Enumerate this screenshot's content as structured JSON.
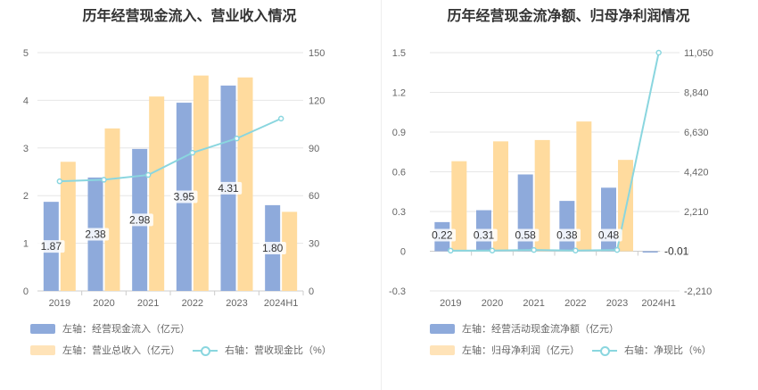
{
  "charts": [
    {
      "title": "历年经营现金流入、营业收入情况",
      "legend": {
        "bar1": "左轴：经营现金流入（亿元）",
        "bar2": "左轴：营业总收入（亿元）",
        "line": "右轴：营收现金比（%）"
      }
    },
    {
      "title": "历年经营现金流净额、归母净利润情况",
      "legend": {
        "bar1": "左轴：经营活动现金流净额（亿元）",
        "bar2": "左轴：归母净利润（亿元）",
        "line": "右轴：净现比（%）"
      }
    }
  ],
  "colors": {
    "bar1": "#8eaadb",
    "bar2": "#ffdb9e",
    "line": "#8ad6df",
    "grid": "#e6e6e6",
    "axis_text": "#666666"
  },
  "chart_data": [
    {
      "type": "bar",
      "title": "历年经营现金流入、营业收入情况",
      "categories": [
        "2019",
        "2020",
        "2021",
        "2022",
        "2023",
        "2024H1"
      ],
      "series": [
        {
          "name": "左轴：经营现金流入（亿元）",
          "axis": "left",
          "values": [
            1.87,
            2.38,
            2.98,
            3.95,
            4.31,
            1.8
          ],
          "labels": [
            "1.87",
            "2.38",
            "2.98",
            "3.95",
            "4.31",
            "1.80"
          ]
        },
        {
          "name": "左轴：营业总收入（亿元）",
          "axis": "left",
          "values": [
            2.71,
            3.41,
            4.08,
            4.52,
            4.48,
            1.66
          ]
        },
        {
          "name": "右轴：营收现金比（%）",
          "axis": "right",
          "type": "line",
          "values": [
            69,
            70,
            73,
            87,
            96,
            108.5
          ]
        }
      ],
      "y_left": {
        "min": 0,
        "max": 5,
        "ticks": [
          "0",
          "1",
          "2",
          "3",
          "4",
          "5"
        ]
      },
      "y_right": {
        "min": 0,
        "max": 150,
        "ticks": [
          "0",
          "30",
          "60",
          "90",
          "120",
          "150"
        ]
      },
      "grid": true,
      "legend_position": "bottom"
    },
    {
      "type": "bar",
      "title": "历年经营现金流净额、归母净利润情况",
      "categories": [
        "2019",
        "2020",
        "2021",
        "2022",
        "2023",
        "2024H1"
      ],
      "series": [
        {
          "name": "左轴：经营活动现金流净额（亿元）",
          "axis": "left",
          "values": [
            0.22,
            0.31,
            0.58,
            0.38,
            0.48,
            -0.01
          ],
          "labels": [
            "0.22",
            "0.31",
            "0.58",
            "0.38",
            "0.48",
            "-0.01"
          ]
        },
        {
          "name": "左轴：归母净利润（亿元）",
          "axis": "left",
          "values": [
            0.68,
            0.83,
            0.84,
            0.98,
            0.69,
            0.0
          ]
        },
        {
          "name": "右轴：净现比（%）",
          "axis": "right",
          "type": "line",
          "values": [
            32,
            37,
            69,
            39,
            70,
            11050
          ]
        }
      ],
      "y_left": {
        "min": -0.3,
        "max": 1.5,
        "ticks": [
          "-0.3",
          "0",
          "0.3",
          "0.6",
          "0.9",
          "1.2",
          "1.5"
        ]
      },
      "y_right": {
        "min": -2210,
        "max": 11050,
        "ticks": [
          "-2,210",
          "0",
          "2,210",
          "4,420",
          "6,630",
          "8,840",
          "11,050"
        ]
      },
      "grid": true,
      "legend_position": "bottom"
    }
  ]
}
